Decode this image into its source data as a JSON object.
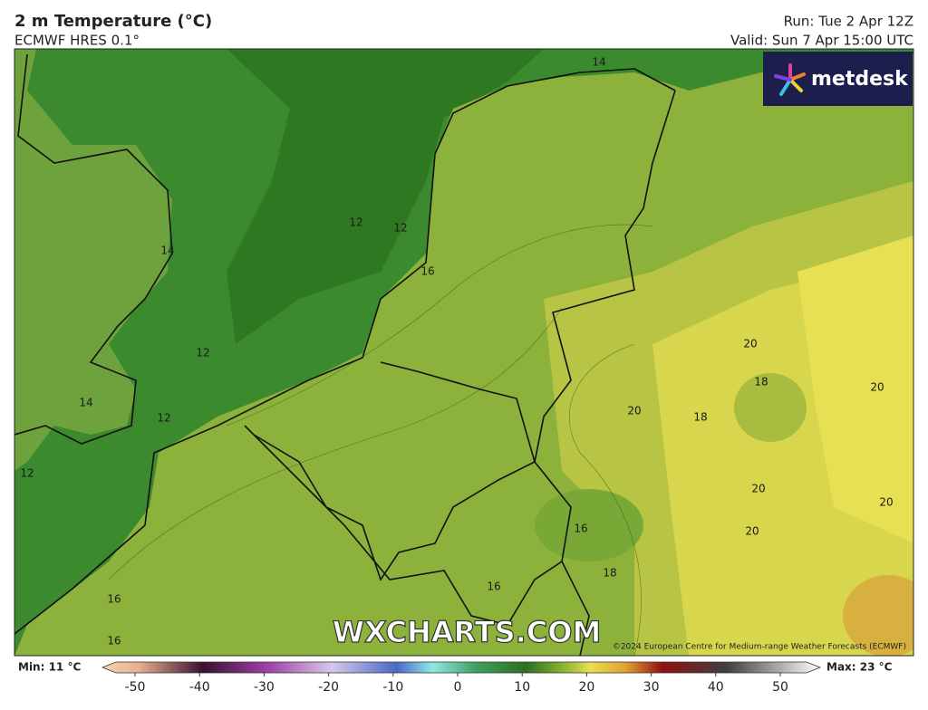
{
  "header": {
    "title": "2 m Temperature (°C)",
    "subtitle": "ECMWF HRES 0.1°",
    "run": "Run: Tue 2 Apr 12Z",
    "valid": "Valid: Sun 7 Apr 15:00 UTC"
  },
  "logo": "metdesk",
  "watermark": "WXCHARTS.COM",
  "copyright": "©2024 European Centre for Medium-range Weather Forecasts (ECMWF)",
  "contour_labels": [
    14,
    12,
    12,
    14,
    16,
    12,
    20,
    18,
    20,
    14,
    20,
    18,
    12,
    12,
    20,
    20,
    16,
    20,
    18,
    16,
    16,
    16
  ],
  "colorbar": {
    "min_label": "Min: 11 °C",
    "max_label": "Max: 23 °C",
    "ticks": [
      -50,
      -40,
      -30,
      -20,
      -10,
      0,
      10,
      20,
      30,
      40,
      50
    ]
  }
}
